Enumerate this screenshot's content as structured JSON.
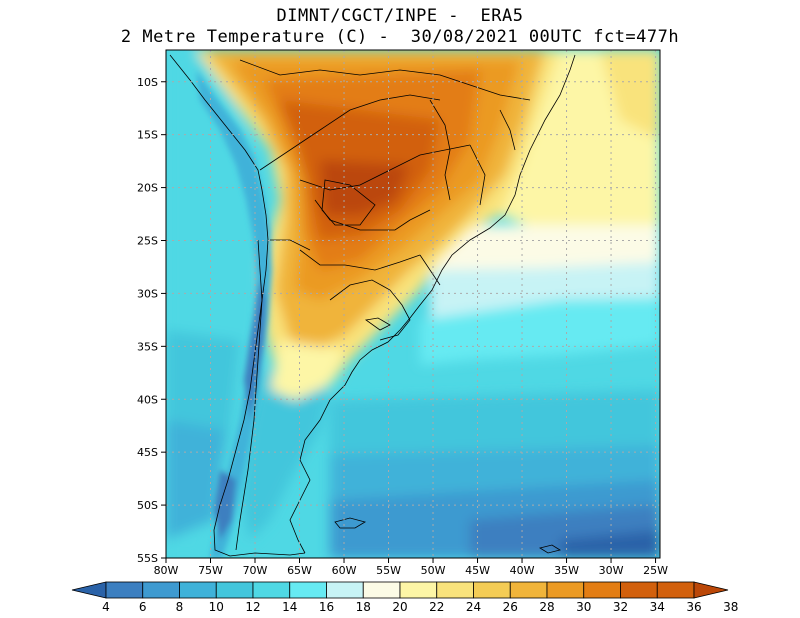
{
  "header": {
    "line1": "DIMNT/CGCT/INPE -  ERA5",
    "line2": "2 Metre Temperature (C) -  30/08/2021 00UTC fct=477h"
  },
  "axes": {
    "lat_labels": [
      "10S",
      "15S",
      "20S",
      "25S",
      "30S",
      "35S",
      "40S",
      "45S",
      "50S",
      "55S"
    ],
    "lat_values": [
      -10,
      -15,
      -20,
      -25,
      -30,
      -35,
      -40,
      -45,
      -50,
      -55
    ],
    "lon_labels": [
      "80W",
      "75W",
      "70W",
      "65W",
      "60W",
      "55W",
      "50W",
      "45W",
      "40W",
      "35W",
      "30W",
      "25W"
    ],
    "lon_values": [
      -80,
      -75,
      -70,
      -65,
      -60,
      -55,
      -50,
      -45,
      -40,
      -35,
      -30,
      -25
    ],
    "lat_range": [
      -55,
      -7
    ],
    "lon_range": [
      -80,
      -24.5
    ],
    "grid": "dotted"
  },
  "colorbar": {
    "labels": [
      "4",
      "6",
      "8",
      "10",
      "12",
      "14",
      "16",
      "18",
      "20",
      "22",
      "24",
      "26",
      "28",
      "30",
      "32",
      "34",
      "36",
      "38"
    ],
    "colors": [
      "#2a62a8",
      "#3c7fc0",
      "#3e9ad0",
      "#3fb2d9",
      "#43c6dc",
      "#4fd8e4",
      "#66eaf2",
      "#c7f3f5",
      "#fcfbe6",
      "#fdf6a6",
      "#f9e37c",
      "#f4cc55",
      "#f0b43a",
      "#eb9a23",
      "#e37d13",
      "#d2600c",
      "#bb4708"
    ]
  },
  "colors": {
    "land_line": "#000000",
    "grid_line": "#aaaaaa"
  }
}
